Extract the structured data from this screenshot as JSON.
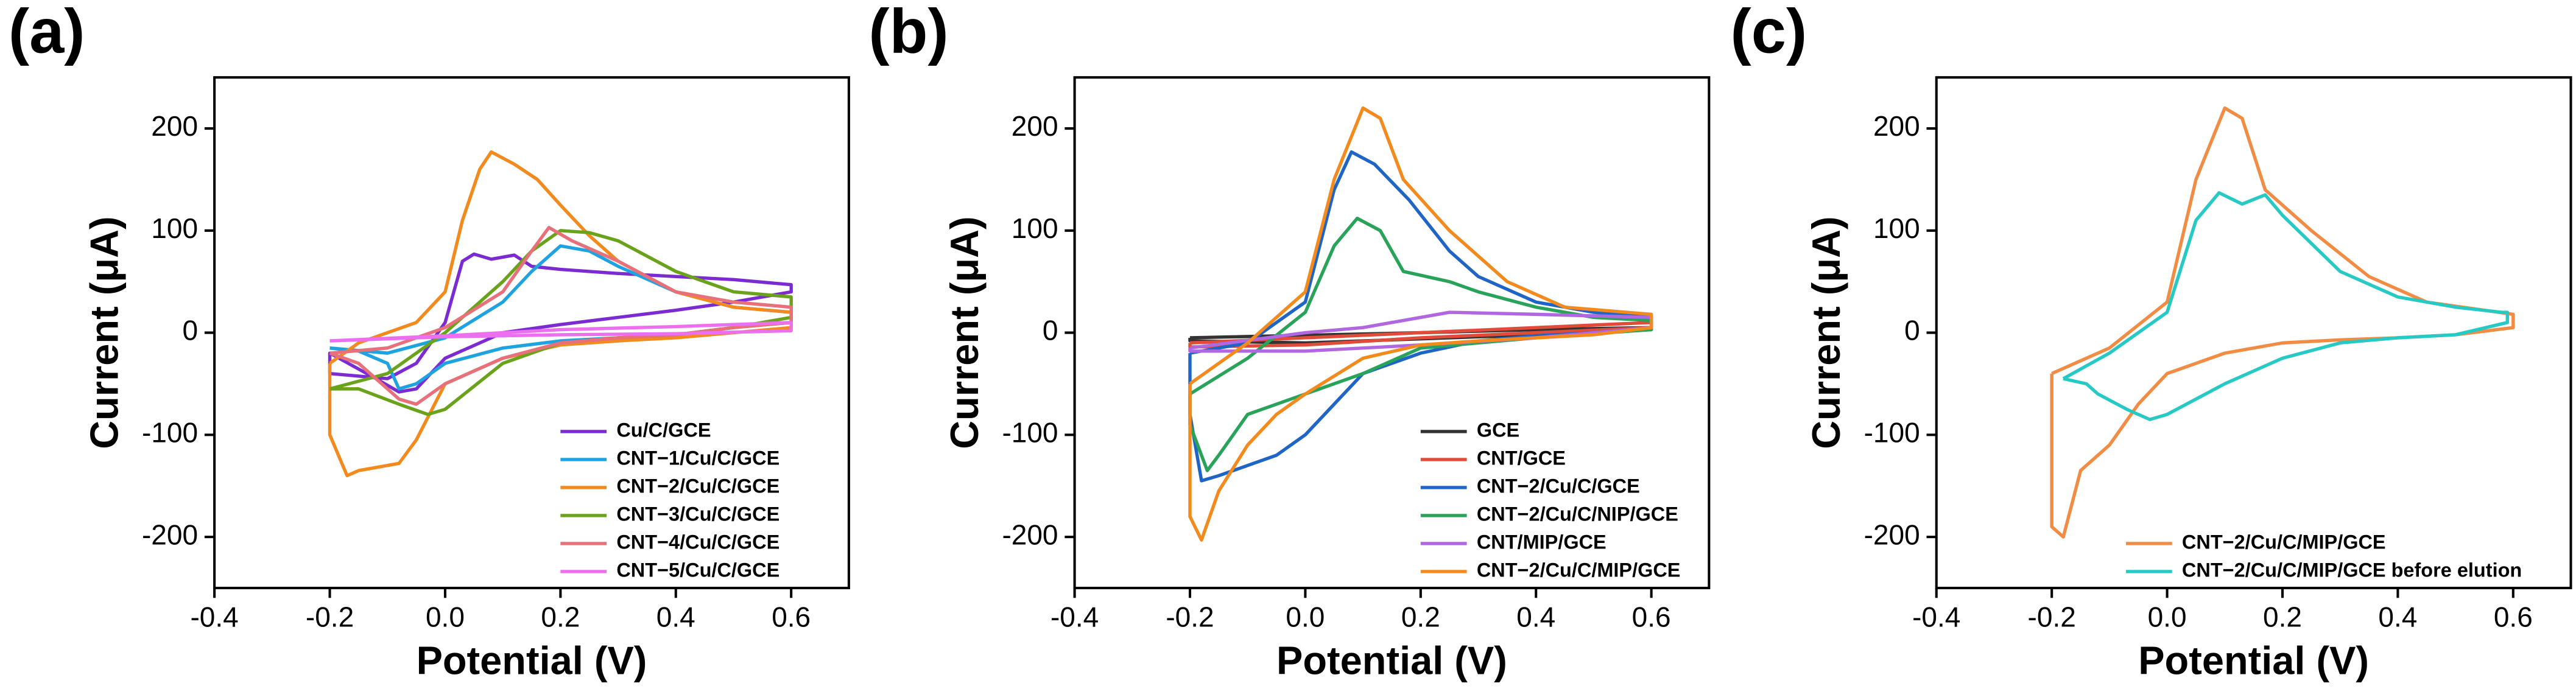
{
  "chart_data": [
    {
      "type": "line",
      "panel_label": "(a)",
      "xlabel": "Potential (V)",
      "ylabel": "Current (μA)",
      "xlim": [
        -0.4,
        0.7
      ],
      "ylim": [
        -250,
        250
      ],
      "xticks": [
        -0.4,
        -0.2,
        {
          "value": 0,
          "label": "0.0"
        },
        0.2,
        0.4,
        0.6
      ],
      "yticks": [
        -200,
        -100,
        0,
        100,
        200
      ],
      "legend": "lower right",
      "series": [
        {
          "name": "Cu/C/GCE",
          "color": "#7b2bd1",
          "x": [
            -0.2,
            -0.1,
            -0.05,
            0,
            0.03,
            0.05,
            0.08,
            0.12,
            0.15,
            0.2,
            0.3,
            0.4,
            0.5,
            0.6,
            0.6,
            0.5,
            0.4,
            0.3,
            0.2,
            0.1,
            0,
            -0.05,
            -0.08,
            -0.12,
            -0.2,
            -0.2
          ],
          "values": [
            -40,
            -45,
            -30,
            10,
            70,
            77,
            72,
            76,
            65,
            62,
            58,
            55,
            52,
            47,
            40,
            30,
            22,
            15,
            8,
            0,
            -25,
            -55,
            -58,
            -45,
            -20,
            -40
          ]
        },
        {
          "name": "CNT−1/Cu/C/GCE",
          "color": "#1fa3e0",
          "x": [
            -0.2,
            -0.1,
            0,
            0.1,
            0.15,
            0.2,
            0.25,
            0.3,
            0.4,
            0.5,
            0.6,
            0.6,
            0.5,
            0.4,
            0.3,
            0.2,
            0.1,
            0,
            -0.05,
            -0.08,
            -0.1,
            -0.15,
            -0.2
          ],
          "values": [
            -15,
            -20,
            -5,
            30,
            60,
            85,
            80,
            65,
            40,
            25,
            20,
            10,
            5,
            -2,
            -5,
            -8,
            -15,
            -30,
            -50,
            -55,
            -30,
            -18,
            -15
          ]
        },
        {
          "name": "CNT−2/Cu/C/GCE",
          "color": "#f28a1e",
          "x": [
            -0.2,
            -0.15,
            -0.05,
            0,
            0.03,
            0.06,
            0.08,
            0.12,
            0.16,
            0.2,
            0.25,
            0.3,
            0.4,
            0.5,
            0.6,
            0.6,
            0.5,
            0.4,
            0.3,
            0.2,
            0.1,
            0,
            -0.05,
            -0.08,
            -0.12,
            -0.15,
            -0.17,
            -0.2,
            -0.2
          ],
          "values": [
            -30,
            -10,
            10,
            40,
            110,
            160,
            177,
            165,
            150,
            125,
            95,
            70,
            40,
            25,
            20,
            5,
            0,
            -5,
            -8,
            -12,
            -25,
            -50,
            -105,
            -128,
            -132,
            -135,
            -140,
            -100,
            -30
          ]
        },
        {
          "name": "CNT−3/Cu/C/GCE",
          "color": "#6aa31b",
          "x": [
            -0.2,
            -0.1,
            0,
            0.1,
            0.15,
            0.2,
            0.25,
            0.3,
            0.4,
            0.5,
            0.6,
            0.6,
            0.5,
            0.4,
            0.3,
            0.2,
            0.1,
            0,
            -0.03,
            -0.08,
            -0.15,
            -0.2
          ],
          "values": [
            -55,
            -40,
            0,
            50,
            80,
            100,
            98,
            90,
            60,
            40,
            35,
            15,
            5,
            -2,
            -5,
            -10,
            -30,
            -75,
            -80,
            -70,
            -55,
            -55
          ]
        },
        {
          "name": "CNT−4/Cu/C/GCE",
          "color": "#e8707a",
          "x": [
            -0.2,
            -0.1,
            0,
            0.1,
            0.15,
            0.18,
            0.22,
            0.3,
            0.4,
            0.5,
            0.6,
            0.6,
            0.5,
            0.4,
            0.3,
            0.2,
            0.1,
            0,
            -0.05,
            -0.08,
            -0.15,
            -0.2
          ],
          "values": [
            -20,
            -15,
            5,
            40,
            80,
            103,
            90,
            70,
            40,
            30,
            25,
            10,
            5,
            -2,
            -5,
            -10,
            -25,
            -50,
            -70,
            -65,
            -30,
            -20
          ]
        },
        {
          "name": "CNT−5/Cu/C/GCE",
          "color": "#ec6ff0",
          "x": [
            -0.2,
            0,
            0.2,
            0.4,
            0.6,
            0.6,
            0.4,
            0.2,
            0,
            -0.2
          ],
          "values": [
            -8,
            -3,
            3,
            6,
            10,
            2,
            -1,
            -2,
            -4,
            -8
          ]
        }
      ]
    },
    {
      "type": "line",
      "panel_label": "(b)",
      "xlabel": "Potential (V)",
      "ylabel": "Current (μA)",
      "xlim": [
        -0.4,
        0.7
      ],
      "ylim": [
        -250,
        250
      ],
      "xticks": [
        -0.4,
        -0.2,
        {
          "value": 0,
          "label": "0.0"
        },
        0.2,
        0.4,
        0.6
      ],
      "yticks": [
        -200,
        -100,
        0,
        100,
        200
      ],
      "legend": "lower right",
      "series": [
        {
          "name": "GCE",
          "color": "#333333",
          "x": [
            -0.2,
            0.2,
            0.4,
            0.6,
            0.6,
            0.4,
            0.2,
            0,
            -0.2,
            -0.2
          ],
          "values": [
            -5,
            0,
            3,
            5,
            3,
            -2,
            -6,
            -10,
            -8,
            -5
          ]
        },
        {
          "name": "CNT/GCE",
          "color": "#e04b3a",
          "x": [
            -0.2,
            0,
            0.2,
            0.4,
            0.6,
            0.6,
            0.4,
            0.2,
            0,
            -0.2,
            -0.2
          ],
          "values": [
            -10,
            -5,
            0,
            5,
            10,
            5,
            0,
            -5,
            -12,
            -14,
            -10
          ]
        },
        {
          "name": "CNT−2/Cu/C/GCE",
          "color": "#1f65c6",
          "x": [
            -0.2,
            -0.1,
            0,
            0.05,
            0.08,
            0.12,
            0.18,
            0.25,
            0.3,
            0.4,
            0.5,
            0.6,
            0.6,
            0.5,
            0.4,
            0.3,
            0.2,
            0.1,
            0.05,
            0,
            -0.05,
            -0.1,
            -0.15,
            -0.18,
            -0.2,
            -0.2
          ],
          "values": [
            -20,
            -10,
            30,
            140,
            177,
            165,
            130,
            80,
            55,
            30,
            20,
            15,
            5,
            0,
            -3,
            -8,
            -20,
            -40,
            -70,
            -100,
            -120,
            -130,
            -140,
            -145,
            -80,
            -20
          ]
        },
        {
          "name": "CNT−2/Cu/C/NIP/GCE",
          "color": "#2aa35a",
          "x": [
            -0.2,
            -0.1,
            0,
            0.05,
            0.09,
            0.13,
            0.17,
            0.25,
            0.3,
            0.4,
            0.5,
            0.6,
            0.6,
            0.4,
            0.2,
            0.1,
            0,
            -0.1,
            -0.15,
            -0.17,
            -0.2,
            -0.2
          ],
          "values": [
            -60,
            -25,
            20,
            85,
            112,
            100,
            60,
            50,
            40,
            25,
            15,
            12,
            3,
            -5,
            -15,
            -40,
            -60,
            -80,
            -120,
            -135,
            -90,
            -60
          ]
        },
        {
          "name": "CNT/MIP/GCE",
          "color": "#b067e0",
          "x": [
            -0.2,
            0,
            0.1,
            0.25,
            0.4,
            0.6,
            0.6,
            0.4,
            0.2,
            0,
            -0.2,
            -0.2
          ],
          "values": [
            -15,
            0,
            5,
            20,
            18,
            15,
            5,
            -5,
            -12,
            -18,
            -18,
            -15
          ]
        },
        {
          "name": "CNT−2/Cu/C/MIP/GCE",
          "color": "#f28a1e",
          "x": [
            -0.2,
            -0.1,
            0,
            0.05,
            0.1,
            0.13,
            0.17,
            0.25,
            0.35,
            0.45,
            0.6,
            0.6,
            0.5,
            0.4,
            0.3,
            0.2,
            0.1,
            0,
            -0.05,
            -0.1,
            -0.15,
            -0.18,
            -0.2,
            -0.2
          ],
          "values": [
            -50,
            -10,
            40,
            150,
            220,
            210,
            150,
            100,
            50,
            25,
            18,
            5,
            -2,
            -5,
            -8,
            -12,
            -25,
            -60,
            -80,
            -110,
            -155,
            -203,
            -180,
            -50
          ]
        }
      ]
    },
    {
      "type": "line",
      "panel_label": "(c)",
      "xlabel": "Potential (V)",
      "ylabel": "Current (μA)",
      "xlim": [
        -0.4,
        0.7
      ],
      "ylim": [
        -250,
        250
      ],
      "xticks": [
        -0.4,
        -0.2,
        {
          "value": 0,
          "label": "0.0"
        },
        0.2,
        0.4,
        0.6
      ],
      "yticks": [
        -200,
        -100,
        0,
        100,
        200
      ],
      "legend": "lower right",
      "series": [
        {
          "name": "CNT−2/Cu/C/MIP/GCE",
          "color": "#f08c44",
          "x": [
            -0.2,
            -0.1,
            0,
            0.05,
            0.1,
            0.13,
            0.17,
            0.25,
            0.35,
            0.45,
            0.6,
            0.6,
            0.5,
            0.4,
            0.3,
            0.2,
            0.1,
            0,
            -0.05,
            -0.1,
            -0.15,
            -0.18,
            -0.2,
            -0.2
          ],
          "values": [
            -40,
            -15,
            30,
            150,
            220,
            210,
            140,
            100,
            55,
            30,
            18,
            5,
            -2,
            -5,
            -7,
            -10,
            -20,
            -40,
            -70,
            -110,
            -135,
            -200,
            -190,
            -40
          ]
        },
        {
          "name": "CNT−2/Cu/C/MIP/GCE before elution",
          "color": "#26c9c4",
          "x": [
            -0.18,
            -0.1,
            0,
            0.05,
            0.09,
            0.13,
            0.17,
            0.2,
            0.3,
            0.4,
            0.5,
            0.58,
            0.59,
            0.59,
            0.5,
            0.4,
            0.3,
            0.2,
            0.1,
            0,
            -0.03,
            -0.07,
            -0.12,
            -0.14,
            -0.18
          ],
          "values": [
            -45,
            -20,
            20,
            110,
            137,
            126,
            135,
            115,
            60,
            35,
            25,
            20,
            20,
            10,
            -2,
            -5,
            -10,
            -25,
            -50,
            -80,
            -85,
            -75,
            -60,
            -50,
            -45
          ]
        }
      ]
    }
  ]
}
